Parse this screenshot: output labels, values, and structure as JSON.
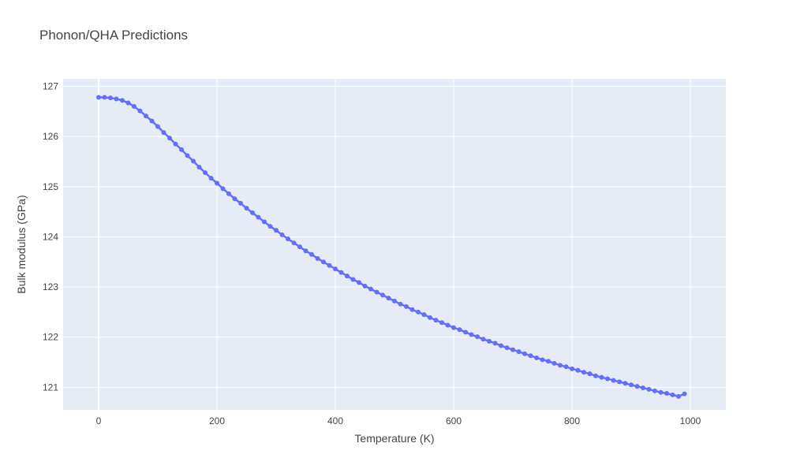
{
  "chart_data": {
    "type": "line",
    "title": "Phonon/QHA Predictions",
    "xlabel": "Temperature (K)",
    "ylabel": "Bulk modulus (GPa)",
    "xlim": [
      -60,
      1060
    ],
    "ylim": [
      120.55,
      127.15
    ],
    "x_ticks": [
      0,
      200,
      400,
      600,
      800,
      1000
    ],
    "y_ticks": [
      121,
      122,
      123,
      124,
      125,
      126,
      127
    ],
    "grid": true,
    "legend": "none",
    "colors": {
      "plot_bg": "#e5ecf6",
      "grid": "#ffffff",
      "series": "#636efa"
    },
    "series": [
      {
        "mode": "lines+markers",
        "x": [
          0,
          10,
          20,
          30,
          40,
          50,
          60,
          70,
          80,
          90,
          100,
          110,
          120,
          130,
          140,
          150,
          160,
          170,
          180,
          190,
          200,
          210,
          220,
          230,
          240,
          250,
          260,
          270,
          280,
          290,
          300,
          310,
          320,
          330,
          340,
          350,
          360,
          370,
          380,
          390,
          400,
          410,
          420,
          430,
          440,
          450,
          460,
          470,
          480,
          490,
          500,
          510,
          520,
          530,
          540,
          550,
          560,
          570,
          580,
          590,
          600,
          610,
          620,
          630,
          640,
          650,
          660,
          670,
          680,
          690,
          700,
          710,
          720,
          730,
          740,
          750,
          760,
          770,
          780,
          790,
          800,
          810,
          820,
          830,
          840,
          850,
          860,
          870,
          880,
          890,
          900,
          910,
          920,
          930,
          940,
          950,
          960,
          970,
          980,
          990
        ],
        "y": [
          126.78,
          126.78,
          126.77,
          126.75,
          126.72,
          126.67,
          126.6,
          126.51,
          126.41,
          126.31,
          126.2,
          126.08,
          125.97,
          125.85,
          125.74,
          125.62,
          125.51,
          125.39,
          125.28,
          125.17,
          125.07,
          124.96,
          124.86,
          124.76,
          124.67,
          124.57,
          124.48,
          124.39,
          124.3,
          124.21,
          124.13,
          124.04,
          123.96,
          123.88,
          123.8,
          123.72,
          123.65,
          123.57,
          123.5,
          123.43,
          123.36,
          123.29,
          123.22,
          123.15,
          123.09,
          123.02,
          122.96,
          122.9,
          122.84,
          122.78,
          122.72,
          122.66,
          122.61,
          122.55,
          122.5,
          122.45,
          122.39,
          122.34,
          122.29,
          122.24,
          122.19,
          122.15,
          122.1,
          122.05,
          122.01,
          121.96,
          121.92,
          121.88,
          121.83,
          121.79,
          121.75,
          121.71,
          121.67,
          121.63,
          121.59,
          121.55,
          121.52,
          121.48,
          121.44,
          121.41,
          121.37,
          121.34,
          121.3,
          121.27,
          121.23,
          121.2,
          121.17,
          121.14,
          121.11,
          121.08,
          121.05,
          121.02,
          120.99,
          120.96,
          120.93,
          120.9,
          120.88,
          120.85,
          120.82,
          120.87
        ]
      }
    ]
  }
}
